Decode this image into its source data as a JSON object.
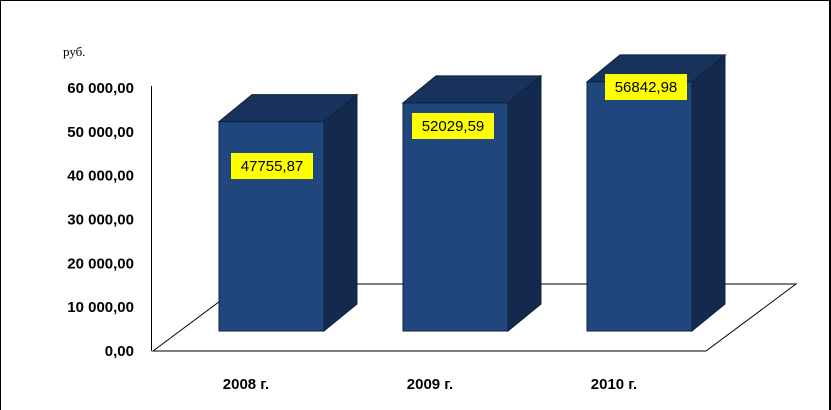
{
  "chart_data": {
    "type": "bar",
    "style": "3d",
    "categories": [
      "2008 г.",
      "2009 г.",
      "2010 г."
    ],
    "values": [
      47755.87,
      52029.59,
      56842.98
    ],
    "data_labels": [
      "47755,87",
      "52029,59",
      "56842,98"
    ],
    "ylabel": "руб.",
    "ylim": [
      0,
      60000
    ],
    "yticks": [
      0,
      10000,
      20000,
      30000,
      40000,
      50000,
      60000
    ],
    "ytick_labels": [
      "0,00",
      "10 000,00",
      "20 000,00",
      "30 000,00",
      "40 000,00",
      "50 000,00",
      "60 000,00"
    ],
    "grid": false,
    "legend": "none",
    "colors": {
      "bar_front": "#1f477e",
      "bar_top": "#17335c",
      "bar_side": "#132a4d",
      "data_label_background": "#ffff00",
      "axis": "#000000"
    }
  }
}
